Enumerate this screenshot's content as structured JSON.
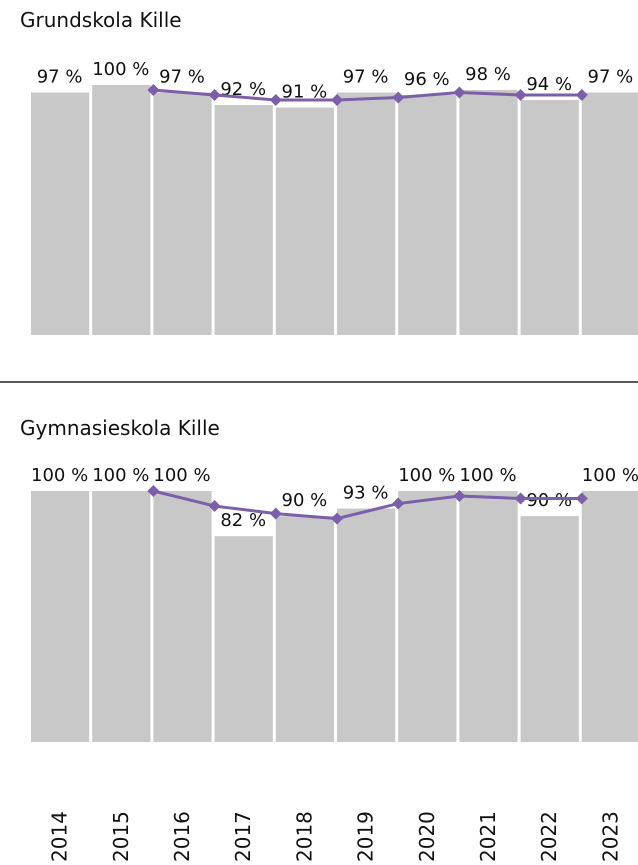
{
  "chart_data": [
    {
      "type": "bar",
      "title": "Grundskola Kille",
      "ylim": [
        0,
        100
      ],
      "series": [
        {
          "type": "bar",
          "color": "#c8c8c8",
          "values": [
            97,
            100,
            97,
            92,
            91,
            97,
            96,
            98,
            94,
            97
          ],
          "value_labels": [
            "97 %",
            "100 %",
            "97 %",
            "92 %",
            "91 %",
            "97 %",
            "96 %",
            "98 %",
            "94 %",
            "97 %"
          ]
        },
        {
          "type": "line",
          "color": "#7b5fa8",
          "values": [
            null,
            null,
            98,
            96,
            94,
            94,
            95,
            97,
            96,
            96
          ]
        }
      ]
    },
    {
      "type": "bar",
      "title": "Gymnasieskola Kille",
      "ylim": [
        0,
        100
      ],
      "categories": [
        "2014",
        "2015",
        "2016",
        "2017",
        "2018",
        "2019",
        "2020",
        "2021",
        "2022",
        "2023"
      ],
      "series": [
        {
          "type": "bar",
          "color": "#c8c8c8",
          "values": [
            100,
            100,
            100,
            82,
            90,
            93,
            100,
            100,
            90,
            100
          ],
          "value_labels": [
            "100 %",
            "100 %",
            "100 %",
            "82 %",
            "90 %",
            "93 %",
            "100 %",
            "100 %",
            "90 %",
            "100 %"
          ]
        },
        {
          "type": "line",
          "color": "#7b5fa8",
          "values": [
            null,
            null,
            100,
            94,
            91,
            89,
            95,
            98,
            97,
            97
          ]
        }
      ]
    }
  ]
}
